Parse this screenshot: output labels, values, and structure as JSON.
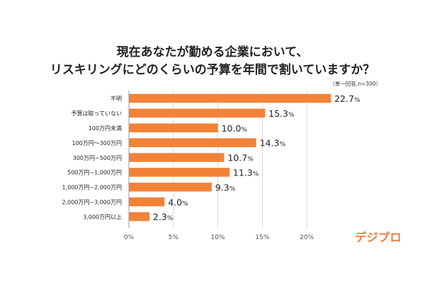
{
  "title_lines": [
    "現在あなたが勤める企業において、",
    "リスキリングにどのくらいの予算を年間で割いていますか？"
  ],
  "note": "（単一回答,n=300）",
  "logo": "デジプロ",
  "colors": {
    "bar": "#f28236",
    "grid": "#cfcfcf",
    "text": "#222222"
  },
  "chart_data": {
    "type": "bar",
    "orientation": "horizontal",
    "categories": [
      "不明",
      "予算は取っていない",
      "100万円未満",
      "100万円～300万円",
      "300万円~500万円",
      "500万円~1,000万円",
      "1,000万円~2,000万円",
      "2,000万円~3,000万円",
      "3,000万円以上"
    ],
    "values": [
      22.7,
      15.3,
      10.0,
      14.3,
      10.7,
      11.3,
      9.3,
      4.0,
      2.3
    ],
    "value_labels": [
      "22.7",
      "15.3",
      "10.0",
      "14.3",
      "10.7",
      "11.3",
      "9.3",
      "4.0",
      "2.3"
    ],
    "value_unit": "%",
    "xlim": [
      0,
      25
    ],
    "xticks": [
      "0%",
      "5%",
      "10%",
      "15%",
      "20%"
    ],
    "xtick_values": [
      0,
      5,
      10,
      15,
      20
    ],
    "grid": true
  }
}
